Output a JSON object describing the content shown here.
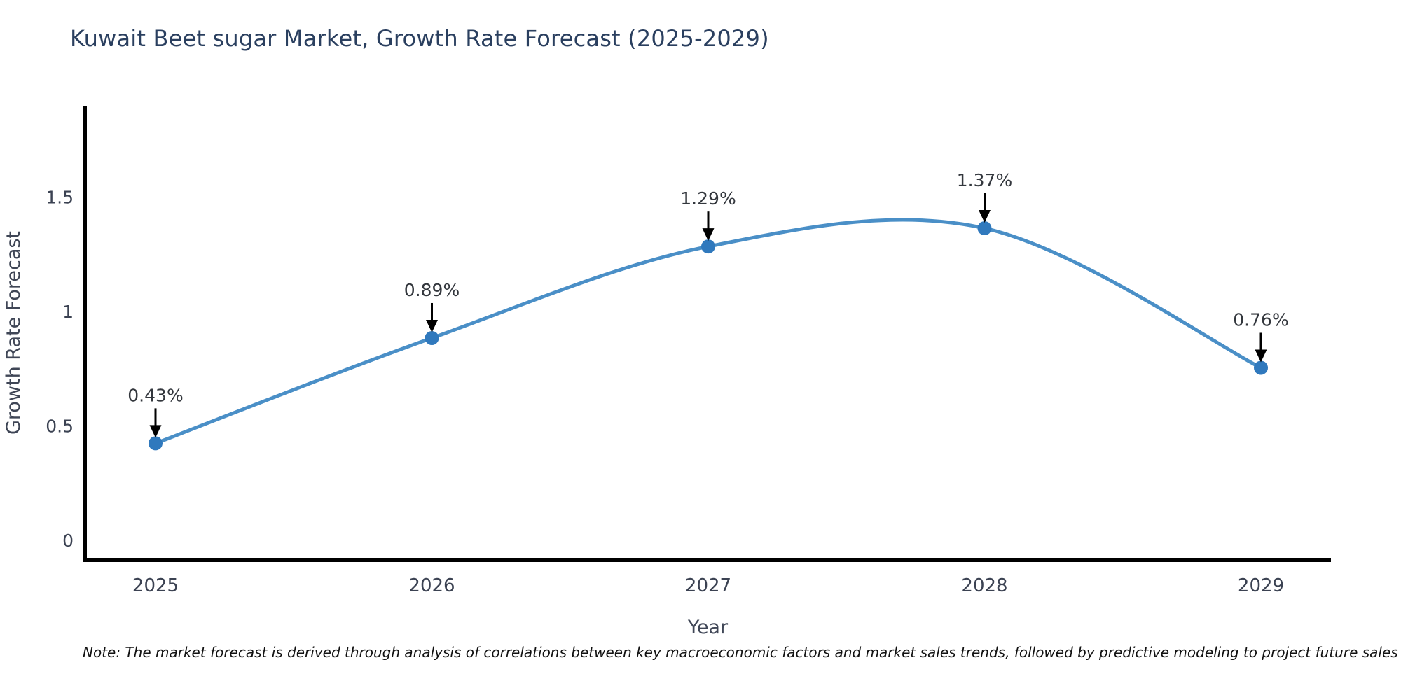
{
  "page": {
    "background": "#ffffff"
  },
  "title": {
    "text": "Kuwait Beet sugar Market, Growth Rate Forecast (2025-2029)",
    "color": "#2a3f5f"
  },
  "chart_data": {
    "type": "line",
    "title": "Kuwait Beet sugar Market, Growth Rate Forecast (2025-2029)",
    "categories": [
      "2025",
      "2026",
      "2027",
      "2028",
      "2029"
    ],
    "series": [
      {
        "name": "Growth Rate Forecast",
        "values": [
          0.43,
          0.89,
          1.29,
          1.37,
          0.76
        ]
      }
    ],
    "point_labels": [
      "0.43%",
      "0.89%",
      "1.29%",
      "1.37%",
      "0.76%"
    ],
    "xlabel": "Year",
    "ylabel": "Growth Rate Forecast",
    "yticks": [
      0,
      0.5,
      1,
      1.5
    ],
    "ytick_labels": [
      "0",
      "0.5",
      "1",
      "1.5"
    ],
    "ylim": [
      -0.08,
      1.9
    ],
    "grid": false,
    "smooth": true,
    "legend": "none",
    "line_color": "#4a8fc7",
    "marker_color": "#3079bd",
    "axis_color": "#000000",
    "arrow_color": "#000000",
    "tick_color": "#3b4252",
    "axis_label_color": "#3f4656",
    "annotation_color": "#33373d"
  },
  "note": {
    "text": "Note: The market forecast is derived through analysis of correlations between key macroeconomic factors and market sales trends, followed by predictive modeling to project future sales"
  }
}
